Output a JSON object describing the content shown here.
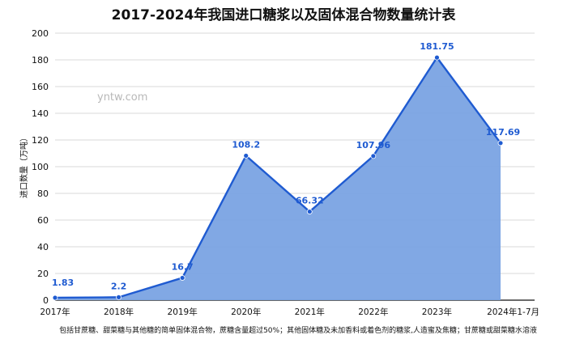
{
  "chart_data": {
    "type": "area",
    "title": "2017-2024年我国进口糖浆以及固体混合物数量统计表",
    "ylabel": "进口数量（万吨）",
    "xlabel": "",
    "categories": [
      "2017年",
      "2018年",
      "2019年",
      "2020年",
      "2021年",
      "2022年",
      "2023年",
      "2024年1-7月"
    ],
    "series": [
      {
        "values": [
          1.83,
          2.2,
          16.7,
          108.2,
          66.32,
          107.96,
          181.75,
          117.69
        ],
        "labels": [
          "1.83",
          "2.2",
          "16.7",
          "108.2",
          "66.32",
          "107.96",
          "181.75",
          "117.69"
        ]
      }
    ],
    "ylim": [
      0,
      200
    ],
    "yticks": [
      0,
      20,
      40,
      60,
      80,
      100,
      120,
      140,
      160,
      180,
      200
    ],
    "grid": true,
    "colors": {
      "line": "#1f5bd1",
      "area": "#7aa3e3",
      "label": "#1f5bd1"
    },
    "watermark": "yntw.com",
    "footnote": "包括甘蔗糖、甜菜糖与其他糖的简单固体混合物，蔗糖含量超过50%；其他固体糖及未加香料或着色剂的糖浆,人造蜜及焦糖；甘蔗糖或甜菜糖水溶液"
  }
}
